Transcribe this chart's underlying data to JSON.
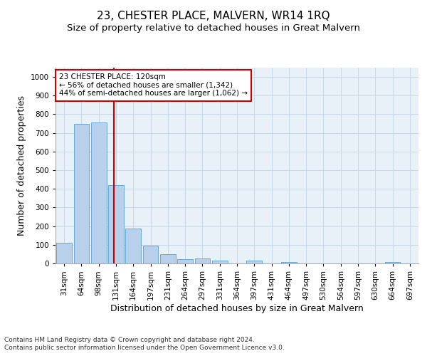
{
  "title": "23, CHESTER PLACE, MALVERN, WR14 1RQ",
  "subtitle": "Size of property relative to detached houses in Great Malvern",
  "xlabel": "Distribution of detached houses by size in Great Malvern",
  "ylabel": "Number of detached properties",
  "bin_labels": [
    "31sqm",
    "64sqm",
    "98sqm",
    "131sqm",
    "164sqm",
    "197sqm",
    "231sqm",
    "264sqm",
    "297sqm",
    "331sqm",
    "364sqm",
    "397sqm",
    "431sqm",
    "464sqm",
    "497sqm",
    "530sqm",
    "564sqm",
    "597sqm",
    "630sqm",
    "664sqm",
    "697sqm"
  ],
  "bar_values": [
    112,
    748,
    755,
    420,
    188,
    97,
    48,
    23,
    27,
    17,
    0,
    16,
    0,
    9,
    0,
    0,
    0,
    0,
    0,
    8,
    0
  ],
  "bar_color": "#b8d0ea",
  "bar_edgecolor": "#5a9fd4",
  "grid_color": "#c8d8e8",
  "background_color": "#e8f0f8",
  "vline_x_index": 2.87,
  "vline_color": "#cc0000",
  "annotation_text": "23 CHESTER PLACE: 120sqm\n← 56% of detached houses are smaller (1,342)\n44% of semi-detached houses are larger (1,062) →",
  "annotation_box_color": "#ffffff",
  "annotation_box_edgecolor": "#cc0000",
  "ylim": [
    0,
    1050
  ],
  "yticks": [
    0,
    100,
    200,
    300,
    400,
    500,
    600,
    700,
    800,
    900,
    1000
  ],
  "footer_line1": "Contains HM Land Registry data © Crown copyright and database right 2024.",
  "footer_line2": "Contains public sector information licensed under the Open Government Licence v3.0.",
  "title_fontsize": 11,
  "subtitle_fontsize": 9.5,
  "tick_fontsize": 7.5,
  "ylabel_fontsize": 9,
  "xlabel_fontsize": 9,
  "annotation_fontsize": 7.5,
  "footer_fontsize": 6.5
}
